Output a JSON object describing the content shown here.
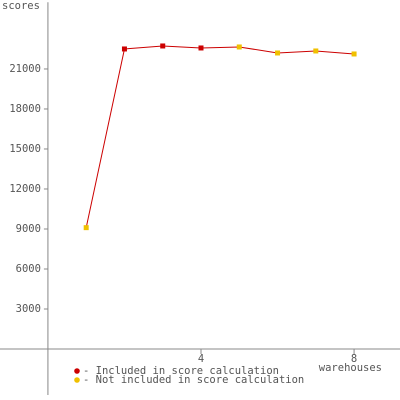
{
  "chart_data": {
    "type": "line",
    "x_label": "warehouses",
    "y_label": "scores",
    "x": [
      1,
      2,
      3,
      4,
      5,
      6,
      7,
      8
    ],
    "series": [
      {
        "name": "- Included in score calculation",
        "color": "#cc0000",
        "values": [
          null,
          22500,
          22725,
          22575,
          null,
          null,
          null,
          null
        ]
      },
      {
        "name": "- Not included in score calculation",
        "color": "#f0c000",
        "values": [
          9100,
          null,
          null,
          null,
          22650,
          22200,
          22350,
          22125
        ]
      }
    ],
    "line_color": "#cc0000",
    "xlim": [
      -1.2,
      9.2
    ],
    "xticks": [
      4,
      8
    ],
    "ylim": [
      -3000,
      26000
    ],
    "yticks": [
      3000,
      6000,
      9000,
      12000,
      15000,
      18000,
      21000
    ],
    "grid": false
  }
}
